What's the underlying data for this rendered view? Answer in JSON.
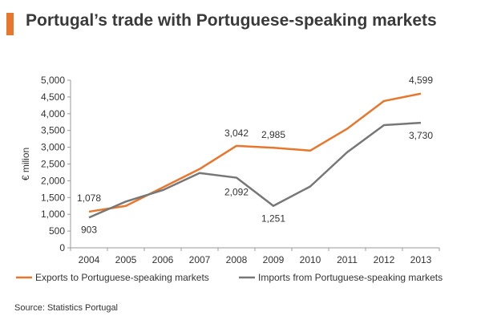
{
  "header": {
    "title": "Portugal’s trade with Portuguese-speaking markets",
    "accent_color": "#e8772e"
  },
  "chart_data": {
    "type": "line",
    "title": "Portugal’s trade with Portuguese-speaking markets",
    "xlabel": "",
    "ylabel": "€ milion",
    "ylim": [
      0,
      5000
    ],
    "yticks": [
      "0",
      "500",
      "1,000",
      "1,500",
      "2,000",
      "2,500",
      "3,000",
      "3,500",
      "4,000",
      "4,500",
      "5,000"
    ],
    "categories": [
      "2004",
      "2005",
      "2006",
      "2007",
      "2008",
      "2009",
      "2010",
      "2011",
      "2012",
      "2013"
    ],
    "grid": false,
    "legend_position": "bottom",
    "series": [
      {
        "name": "Exports to Portuguese-speaking markets",
        "color": "#e8772e",
        "values": [
          1078,
          1250,
          1800,
          2350,
          3042,
          2985,
          2900,
          3550,
          4380,
          4599
        ],
        "labels": [
          {
            "index": 0,
            "text": "1,078"
          },
          {
            "index": 4,
            "text": "3,042"
          },
          {
            "index": 5,
            "text": "2,985"
          },
          {
            "index": 9,
            "text": "4,599"
          }
        ]
      },
      {
        "name": "Imports from Portuguese-speaking markets",
        "color": "#777777",
        "values": [
          903,
          1380,
          1720,
          2230,
          2092,
          1251,
          1830,
          2850,
          3660,
          3730
        ],
        "labels": [
          {
            "index": 0,
            "text": "903"
          },
          {
            "index": 4,
            "text": "2,092"
          },
          {
            "index": 5,
            "text": "1,251"
          },
          {
            "index": 9,
            "text": "3,730"
          }
        ]
      }
    ]
  },
  "footer": {
    "source": "Source: Statistics Portugal"
  }
}
